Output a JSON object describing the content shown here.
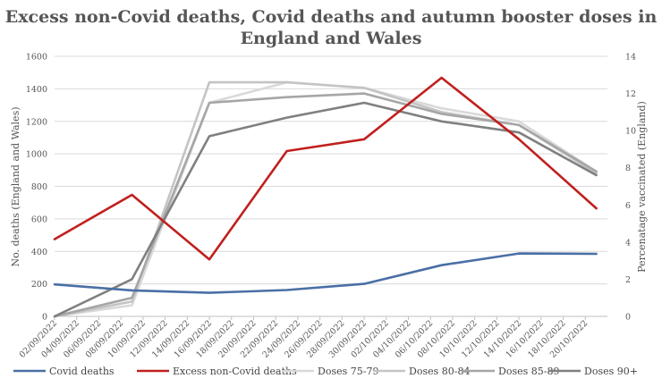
{
  "chart_data": {
    "type": "line",
    "title": "Excess non-Covid deaths, Covid deaths and autumn booster doses in England and Wales",
    "title_lines": [
      "Excess non-Covid deaths, Covid deaths and autumn booster doses in",
      "England and Wales"
    ],
    "ylabel": "No. deaths (England and Wales)",
    "y2label": "Percenatage vaccinated (England)",
    "ylim": [
      0,
      1600
    ],
    "y2lim": [
      0,
      14
    ],
    "yticks": [
      "0",
      "200",
      "400",
      "600",
      "800",
      "1000",
      "1200",
      "1400",
      "1600"
    ],
    "y2ticks": [
      "0",
      "2",
      "4",
      "6",
      "8",
      "10",
      "12",
      "14"
    ],
    "x_dates": [
      "02/09/2022",
      "04/09/2022",
      "06/09/2022",
      "08/09/2022",
      "10/09/2022",
      "12/09/2022",
      "14/09/2022",
      "16/09/2022",
      "18/09/2022",
      "20/09/2022",
      "22/09/2022",
      "24/09/2022",
      "26/09/2022",
      "28/09/2022",
      "30/09/2022",
      "02/10/2022",
      "04/10/2022",
      "06/10/2022",
      "08/10/2022",
      "10/10/2022",
      "12/10/2022",
      "14/10/2022",
      "16/10/2022",
      "18/10/2022",
      "20/10/2022"
    ],
    "grid": true,
    "legend_position": "bottom",
    "series": [
      {
        "name": "Covid deaths",
        "axis": "left",
        "color": "#4a6fa5",
        "points": [
          [
            "02/09/2022",
            197
          ],
          [
            "09/09/2022",
            160
          ],
          [
            "16/09/2022",
            145
          ],
          [
            "23/09/2022",
            162
          ],
          [
            "30/09/2022",
            200
          ],
          [
            "07/10/2022",
            315
          ],
          [
            "14/10/2022",
            387
          ],
          [
            "21/10/2022",
            385
          ]
        ]
      },
      {
        "name": "Excess non-Covid deaths",
        "axis": "left",
        "color": "#c0201e",
        "points": [
          [
            "02/09/2022",
            475
          ],
          [
            "09/09/2022",
            748
          ],
          [
            "16/09/2022",
            350
          ],
          [
            "23/09/2022",
            1017
          ],
          [
            "30/09/2022",
            1090
          ],
          [
            "07/10/2022",
            1468
          ],
          [
            "14/10/2022",
            1090
          ],
          [
            "21/10/2022",
            665
          ]
        ]
      },
      {
        "name": "Doses 75-79",
        "axis": "right",
        "color": "#d9d9d9",
        "points": [
          [
            "02/09/2022",
            0
          ],
          [
            "09/09/2022",
            0.6
          ],
          [
            "16/09/2022",
            11.5
          ],
          [
            "23/09/2022",
            12.6
          ],
          [
            "30/09/2022",
            12.3
          ],
          [
            "07/10/2022",
            11.2
          ],
          [
            "14/10/2022",
            10.5
          ],
          [
            "21/10/2022",
            7.8
          ]
        ]
      },
      {
        "name": "Doses 80-84",
        "axis": "right",
        "color": "#c4c4c4",
        "points": [
          [
            "02/09/2022",
            0
          ],
          [
            "09/09/2022",
            0.8
          ],
          [
            "16/09/2022",
            12.6
          ],
          [
            "23/09/2022",
            12.6
          ],
          [
            "30/09/2022",
            12.3
          ],
          [
            "07/10/2022",
            11
          ],
          [
            "14/10/2022",
            10.3
          ],
          [
            "21/10/2022",
            7.7
          ]
        ]
      },
      {
        "name": "Doses 85-89",
        "axis": "right",
        "color": "#a6a6a6",
        "points": [
          [
            "02/09/2022",
            0
          ],
          [
            "09/09/2022",
            1
          ],
          [
            "16/09/2022",
            11.5
          ],
          [
            "23/09/2022",
            11.8
          ],
          [
            "30/09/2022",
            12
          ],
          [
            "07/10/2022",
            10.9
          ],
          [
            "14/10/2022",
            10.3
          ],
          [
            "21/10/2022",
            7.8
          ]
        ]
      },
      {
        "name": "Doses 90+",
        "axis": "right",
        "color": "#808080",
        "points": [
          [
            "02/09/2022",
            0
          ],
          [
            "09/09/2022",
            2
          ],
          [
            "16/09/2022",
            9.7
          ],
          [
            "23/09/2022",
            10.7
          ],
          [
            "30/09/2022",
            11.5
          ],
          [
            "07/10/2022",
            10.5
          ],
          [
            "14/10/2022",
            9.9
          ],
          [
            "21/10/2022",
            7.6
          ]
        ]
      }
    ]
  }
}
